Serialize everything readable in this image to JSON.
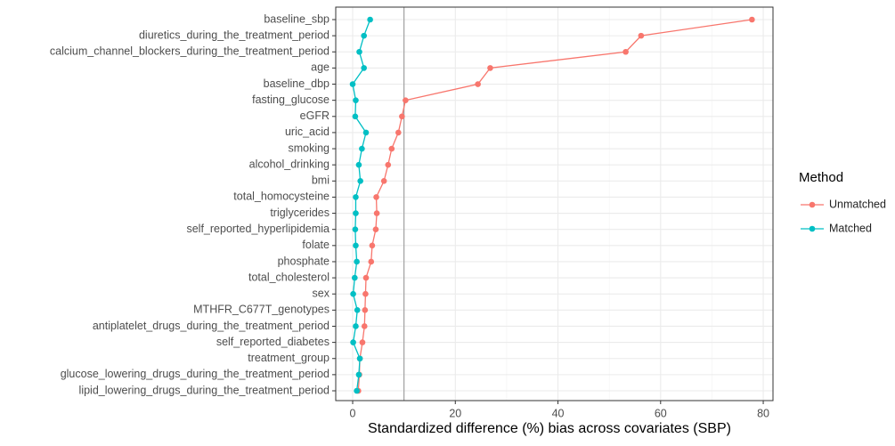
{
  "chart_data": {
    "type": "dotline",
    "x_label": "Standardized difference (%) bias across covariates (SBP)",
    "categories": [
      "baseline_sbp",
      "diuretics_during_the_treatment_period",
      "calcium_channel_blockers_during_the_treatment_period",
      "age",
      "baseline_dbp",
      "fasting_glucose",
      "eGFR",
      "uric_acid",
      "smoking",
      "alcohol_drinking",
      "bmi",
      "total_homocysteine",
      "triglycerides",
      "self_reported_hyperlipidemia",
      "folate",
      "phosphate",
      "total_cholesterol",
      "sex",
      "MTHFR_C677T_genotypes",
      "antiplatelet_drugs_during_the_treatment_period",
      "self_reported_diabetes",
      "treatment_group",
      "glucose_lowering_drugs_during_the_treatment_period",
      "lipid_lowering_drugs_during_the_treatment_period"
    ],
    "series": [
      {
        "name": "Unmatched",
        "color": "#F8766D",
        "values": [
          77.8,
          56.2,
          53.2,
          26.8,
          24.4,
          10.3,
          9.6,
          8.9,
          7.6,
          6.9,
          6.1,
          4.6,
          4.7,
          4.5,
          3.8,
          3.6,
          2.6,
          2.5,
          2.4,
          2.3,
          1.9,
          1.4,
          1.3,
          1.1
        ]
      },
      {
        "name": "Matched",
        "color": "#00BFC4",
        "values": [
          3.4,
          2.2,
          1.3,
          2.2,
          0.0,
          0.6,
          0.5,
          2.6,
          1.8,
          1.2,
          1.5,
          0.6,
          0.6,
          0.5,
          0.6,
          0.8,
          0.4,
          0.1,
          0.9,
          0.6,
          0.1,
          1.4,
          1.2,
          0.8
        ]
      }
    ],
    "legend_title": "Method",
    "legend_position": "right",
    "reference_line": 10,
    "xlim": [
      -3.3,
      81.9
    ],
    "xticks": [
      0,
      20,
      40,
      60,
      80
    ],
    "grid": true
  }
}
